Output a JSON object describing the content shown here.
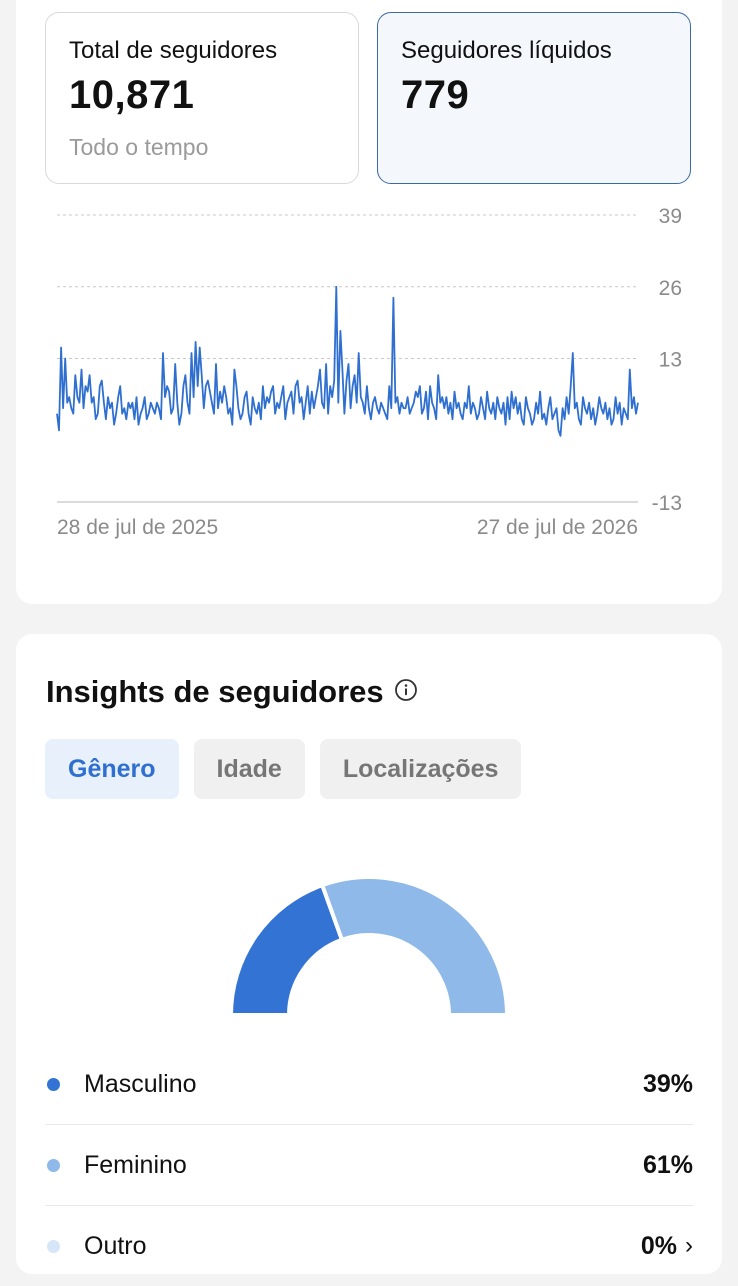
{
  "metrics": {
    "total": {
      "label": "Total de seguidores",
      "value": "10,871",
      "sub": "Todo o tempo"
    },
    "net": {
      "label": "Seguidores líquidos",
      "value": "779"
    }
  },
  "chart_data": {
    "type": "line",
    "title": "",
    "x_labels": [
      "28 de jul de 2025",
      "27 de jul de 2026"
    ],
    "x_range": [
      "2025-07-28",
      "2026-07-27"
    ],
    "y_ticks": [
      39,
      26,
      13,
      -13
    ],
    "ylim": [
      -13,
      39
    ],
    "grid": "dashed horizontal",
    "color": "#2f6fcf",
    "series": [
      {
        "values": [
          3,
          0,
          15,
          4,
          13,
          5,
          6,
          4,
          3,
          10,
          6,
          5,
          11,
          4,
          8,
          7,
          10,
          5,
          6,
          2,
          3,
          8,
          9,
          5,
          2,
          6,
          4,
          5,
          1,
          3,
          6,
          8,
          3,
          4,
          2,
          5,
          4,
          5,
          2,
          6,
          1,
          3,
          4,
          6,
          2,
          3,
          5,
          4,
          3,
          5,
          4,
          2,
          14,
          6,
          8,
          7,
          3,
          4,
          12,
          5,
          1,
          3,
          8,
          10,
          5,
          3,
          14,
          6,
          16,
          8,
          15,
          10,
          4,
          8,
          9,
          7,
          5,
          3,
          12,
          4,
          7,
          5,
          8,
          6,
          3,
          4,
          1,
          11,
          8,
          4,
          2,
          3,
          6,
          7,
          3,
          1,
          6,
          4,
          3,
          5,
          2,
          8,
          4,
          6,
          5,
          7,
          8,
          3,
          5,
          4,
          6,
          8,
          2,
          5,
          6,
          7,
          3,
          8,
          9,
          5,
          6,
          2,
          5,
          8,
          3,
          7,
          4,
          6,
          8,
          11,
          5,
          4,
          12,
          3,
          8,
          6,
          9,
          26,
          5,
          18,
          11,
          3,
          9,
          12,
          4,
          8,
          10,
          5,
          14,
          6,
          5,
          3,
          8,
          4,
          2,
          5,
          6,
          4,
          3,
          5,
          4,
          3,
          2,
          8,
          4,
          24,
          5,
          6,
          3,
          5,
          4,
          4,
          6,
          3,
          4,
          5,
          7,
          6,
          8,
          3,
          4,
          7,
          2,
          8,
          5,
          4,
          2,
          10,
          5,
          6,
          4,
          6,
          3,
          5,
          2,
          7,
          4,
          5,
          3,
          2,
          5,
          4,
          8,
          3,
          5,
          4,
          2,
          3,
          6,
          4,
          2,
          7,
          4,
          3,
          5,
          2,
          6,
          4,
          3,
          5,
          1,
          6,
          2,
          7,
          4,
          6,
          3,
          5,
          2,
          1,
          6,
          4,
          3,
          1,
          2,
          5,
          3,
          7,
          2,
          3,
          1,
          4,
          6,
          2,
          3,
          4,
          0,
          -1,
          4,
          2,
          6,
          3,
          8,
          14,
          4,
          5,
          2,
          1,
          6,
          4,
          3,
          5,
          2,
          4,
          1,
          3,
          6,
          4,
          3,
          5,
          2,
          4,
          1,
          2,
          6,
          3,
          5,
          1,
          4,
          3,
          2,
          11,
          4,
          6,
          3,
          5
        ]
      }
    ]
  },
  "insights": {
    "title": "Insights de seguidores",
    "tabs": [
      {
        "label": "Gênero",
        "active": true
      },
      {
        "label": "Idade",
        "active": false
      },
      {
        "label": "Localizações",
        "active": false
      }
    ]
  },
  "gender": {
    "chart_type": "half-donut",
    "items": [
      {
        "label": "Masculino",
        "value": 39,
        "pct": "39%",
        "color": "#3373d4"
      },
      {
        "label": "Feminino",
        "value": 61,
        "pct": "61%",
        "color": "#8fb9e8"
      },
      {
        "label": "Outro",
        "value": 0,
        "pct": "0%",
        "color": "#d6e6f8"
      }
    ]
  }
}
